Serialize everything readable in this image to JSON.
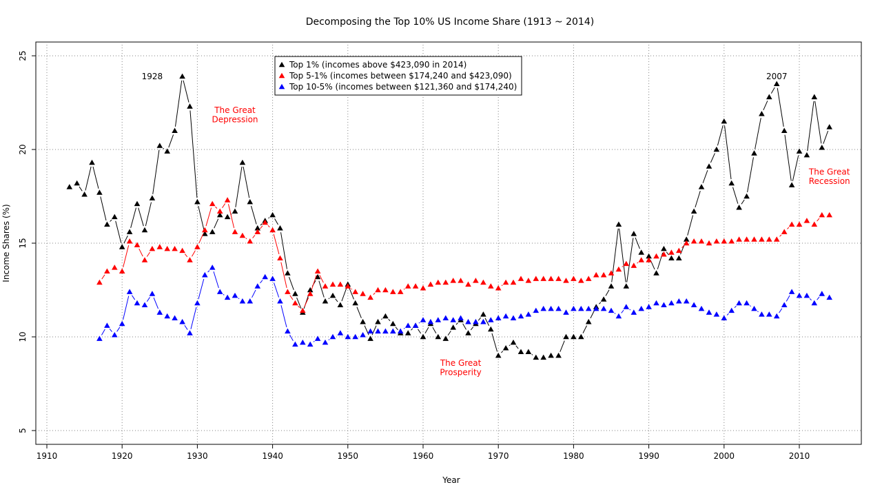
{
  "chart_data": {
    "type": "line",
    "title": "Decomposing the Top 10% US Income Share (1913 ~ 2014)",
    "xlabel": "Year",
    "ylabel": "Income Shares (%)",
    "xlim": [
      1910,
      2017
    ],
    "ylim": [
      5,
      25
    ],
    "x_ticks": [
      "1910",
      "1920",
      "1930",
      "1940",
      "1950",
      "1960",
      "1970",
      "1980",
      "1990",
      "2000",
      "2010"
    ],
    "y_ticks": [
      "5",
      "10",
      "15",
      "20",
      "25"
    ],
    "grid": true,
    "legend_position": "top-center",
    "series": [
      {
        "name": "Top 1% (incomes above $423,090 in 2014)",
        "color": "#000000",
        "marker": "triangle",
        "x": [
          1913,
          1914,
          1915,
          1916,
          1917,
          1918,
          1919,
          1920,
          1921,
          1922,
          1923,
          1924,
          1925,
          1926,
          1927,
          1928,
          1929,
          1930,
          1931,
          1932,
          1933,
          1934,
          1935,
          1936,
          1937,
          1938,
          1939,
          1940,
          1941,
          1942,
          1943,
          1944,
          1945,
          1946,
          1947,
          1948,
          1949,
          1950,
          1951,
          1952,
          1953,
          1954,
          1955,
          1956,
          1957,
          1958,
          1959,
          1960,
          1961,
          1962,
          1963,
          1964,
          1965,
          1966,
          1967,
          1968,
          1969,
          1970,
          1971,
          1972,
          1973,
          1974,
          1975,
          1976,
          1977,
          1978,
          1979,
          1980,
          1981,
          1982,
          1983,
          1984,
          1985,
          1986,
          1987,
          1988,
          1989,
          1990,
          1991,
          1992,
          1993,
          1994,
          1995,
          1996,
          1997,
          1998,
          1999,
          2000,
          2001,
          2002,
          2003,
          2004,
          2005,
          2006,
          2007,
          2008,
          2009,
          2010,
          2011,
          2012,
          2013,
          2014
        ],
        "values": [
          18.0,
          18.2,
          17.6,
          19.3,
          17.7,
          16.0,
          16.4,
          14.8,
          15.6,
          17.1,
          15.7,
          17.4,
          20.2,
          19.9,
          21.0,
          23.9,
          22.3,
          17.2,
          15.5,
          15.6,
          16.5,
          16.4,
          16.7,
          19.3,
          17.2,
          15.8,
          16.2,
          16.5,
          15.8,
          13.4,
          12.3,
          11.3,
          12.5,
          13.2,
          11.9,
          12.2,
          11.7,
          12.8,
          11.8,
          10.8,
          9.9,
          10.8,
          11.1,
          10.7,
          10.2,
          10.2,
          10.6,
          10.0,
          10.7,
          10.0,
          9.9,
          10.5,
          10.9,
          10.2,
          10.7,
          11.2,
          10.4,
          9.0,
          9.4,
          9.7,
          9.2,
          9.2,
          8.9,
          8.9,
          9.0,
          9.0,
          10.0,
          10.0,
          10.0,
          10.8,
          11.6,
          12.0,
          12.7,
          16.0,
          12.7,
          15.5,
          14.5,
          14.3,
          13.4,
          14.7,
          14.2,
          14.2,
          15.2,
          16.7,
          18.0,
          19.1,
          20.0,
          21.5,
          18.2,
          16.9,
          17.5,
          19.8,
          21.9,
          22.8,
          23.5,
          21.0,
          18.1,
          19.9,
          19.7,
          22.8,
          20.1,
          21.2
        ]
      },
      {
        "name": "Top 5-1% (incomes between $174,240 and $423,090)",
        "color": "#ff0000",
        "marker": "triangle",
        "x": [
          1917,
          1918,
          1919,
          1920,
          1921,
          1922,
          1923,
          1924,
          1925,
          1926,
          1927,
          1928,
          1929,
          1930,
          1931,
          1932,
          1933,
          1934,
          1935,
          1936,
          1937,
          1938,
          1939,
          1940,
          1941,
          1942,
          1943,
          1944,
          1945,
          1946,
          1947,
          1948,
          1949,
          1950,
          1951,
          1952,
          1953,
          1954,
          1955,
          1956,
          1957,
          1958,
          1959,
          1960,
          1961,
          1962,
          1963,
          1964,
          1965,
          1966,
          1967,
          1968,
          1969,
          1970,
          1971,
          1972,
          1973,
          1974,
          1975,
          1976,
          1977,
          1978,
          1979,
          1980,
          1981,
          1982,
          1983,
          1984,
          1985,
          1986,
          1987,
          1988,
          1989,
          1990,
          1991,
          1992,
          1993,
          1994,
          1995,
          1996,
          1997,
          1998,
          1999,
          2000,
          2001,
          2002,
          2003,
          2004,
          2005,
          2006,
          2007,
          2008,
          2009,
          2010,
          2011,
          2012,
          2013,
          2014
        ],
        "values": [
          12.9,
          13.5,
          13.7,
          13.5,
          15.1,
          14.9,
          14.1,
          14.7,
          14.8,
          14.7,
          14.7,
          14.6,
          14.1,
          14.8,
          15.7,
          17.1,
          16.7,
          17.3,
          15.6,
          15.4,
          15.1,
          15.6,
          16.1,
          15.7,
          14.2,
          12.4,
          11.8,
          11.4,
          12.3,
          13.5,
          12.7,
          12.8,
          12.8,
          12.7,
          12.4,
          12.3,
          12.1,
          12.5,
          12.5,
          12.4,
          12.4,
          12.7,
          12.7,
          12.6,
          12.8,
          12.9,
          12.9,
          13.0,
          13.0,
          12.8,
          13.0,
          12.9,
          12.7,
          12.6,
          12.9,
          12.9,
          13.1,
          13.0,
          13.1,
          13.1,
          13.1,
          13.1,
          13.0,
          13.1,
          13.0,
          13.1,
          13.3,
          13.3,
          13.4,
          13.6,
          13.9,
          13.8,
          14.1,
          14.1,
          14.3,
          14.4,
          14.5,
          14.6,
          15.0,
          15.1,
          15.1,
          15.0,
          15.1,
          15.1,
          15.1,
          15.2,
          15.2,
          15.2,
          15.2,
          15.2,
          15.2,
          15.6,
          16.0,
          16.0,
          16.2,
          16.0,
          16.5,
          16.5
        ]
      },
      {
        "name": "Top 10-5% (incomes between $121,360 and $174,240)",
        "color": "#0000ff",
        "marker": "triangle",
        "x": [
          1917,
          1918,
          1919,
          1920,
          1921,
          1922,
          1923,
          1924,
          1925,
          1926,
          1927,
          1928,
          1929,
          1930,
          1931,
          1932,
          1933,
          1934,
          1935,
          1936,
          1937,
          1938,
          1939,
          1940,
          1941,
          1942,
          1943,
          1944,
          1945,
          1946,
          1947,
          1948,
          1949,
          1950,
          1951,
          1952,
          1953,
          1954,
          1955,
          1956,
          1957,
          1958,
          1959,
          1960,
          1961,
          1962,
          1963,
          1964,
          1965,
          1966,
          1967,
          1968,
          1969,
          1970,
          1971,
          1972,
          1973,
          1974,
          1975,
          1976,
          1977,
          1978,
          1979,
          1980,
          1981,
          1982,
          1983,
          1984,
          1985,
          1986,
          1987,
          1988,
          1989,
          1990,
          1991,
          1992,
          1993,
          1994,
          1995,
          1996,
          1997,
          1998,
          1999,
          2000,
          2001,
          2002,
          2003,
          2004,
          2005,
          2006,
          2007,
          2008,
          2009,
          2010,
          2011,
          2012,
          2013,
          2014
        ],
        "values": [
          9.9,
          10.6,
          10.1,
          10.7,
          12.4,
          11.8,
          11.7,
          12.3,
          11.3,
          11.1,
          11.0,
          10.8,
          10.2,
          11.8,
          13.3,
          13.7,
          12.4,
          12.1,
          12.2,
          11.9,
          11.9,
          12.7,
          13.2,
          13.1,
          11.9,
          10.3,
          9.6,
          9.7,
          9.6,
          9.9,
          9.7,
          10.0,
          10.2,
          10.0,
          10.0,
          10.1,
          10.3,
          10.3,
          10.3,
          10.3,
          10.3,
          10.6,
          10.6,
          10.9,
          10.8,
          10.9,
          11.0,
          10.9,
          11.0,
          10.8,
          10.8,
          10.8,
          10.9,
          11.0,
          11.1,
          11.0,
          11.1,
          11.2,
          11.4,
          11.5,
          11.5,
          11.5,
          11.3,
          11.5,
          11.5,
          11.5,
          11.5,
          11.5,
          11.4,
          11.1,
          11.6,
          11.3,
          11.5,
          11.6,
          11.8,
          11.7,
          11.8,
          11.9,
          11.9,
          11.7,
          11.5,
          11.3,
          11.2,
          11.0,
          11.4,
          11.8,
          11.8,
          11.5,
          11.2,
          11.2,
          11.1,
          11.7,
          12.4,
          12.2,
          12.2,
          11.8,
          12.3,
          12.1
        ]
      }
    ],
    "annotations": [
      {
        "text": "1928",
        "x": 1924.0,
        "y": 23.9,
        "color": "#000000"
      },
      {
        "text": "2007",
        "x": 2007.0,
        "y": 23.9,
        "color": "#000000"
      },
      {
        "text": "The Great",
        "x": 1935.0,
        "y": 22.1,
        "color": "#ff0000"
      },
      {
        "text": "Depression",
        "x": 1935.0,
        "y": 21.6,
        "color": "#ff0000"
      },
      {
        "text": "The Great",
        "x": 1965.0,
        "y": 8.6,
        "color": "#ff0000"
      },
      {
        "text": "Prosperity",
        "x": 1965.0,
        "y": 8.1,
        "color": "#ff0000"
      },
      {
        "text": "The Great",
        "x": 2014.0,
        "y": 18.8,
        "color": "#ff0000"
      },
      {
        "text": "Recession",
        "x": 2014.0,
        "y": 18.3,
        "color": "#ff0000"
      }
    ]
  }
}
